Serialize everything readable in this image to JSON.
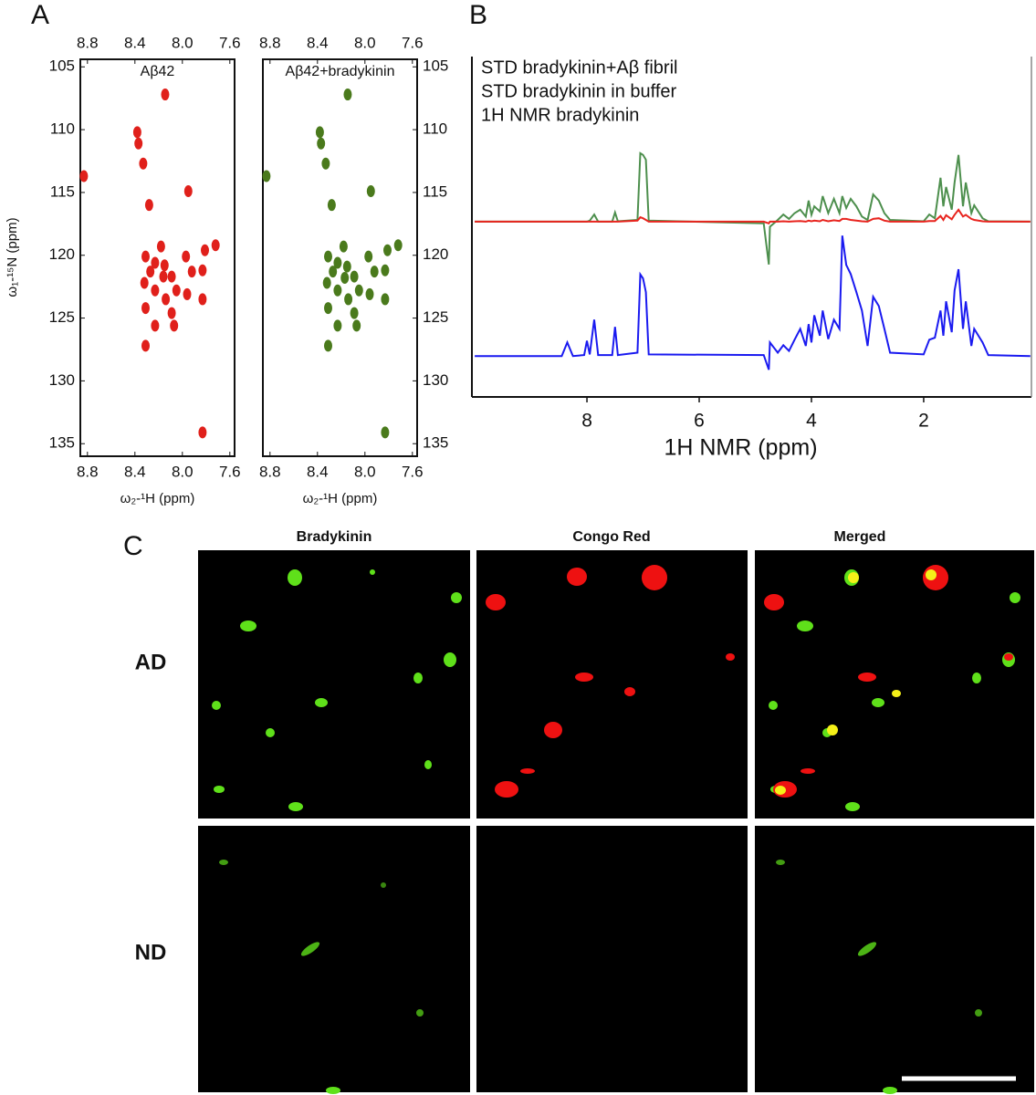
{
  "panel_labels": [
    "A",
    "B",
    "C"
  ],
  "chart_data": [
    {
      "type": "scatter",
      "title": "Aβ42",
      "xlabel": "ω₂-¹H (ppm)",
      "ylabel": "ω₁-¹⁵N (ppm)",
      "color": "#e0201b",
      "xlim": [
        8.86,
        7.56
      ],
      "ylim": [
        104.4,
        136
      ],
      "xticks": [
        8.8,
        8.4,
        {
          "value": 8,
          "label": "8.0"
        },
        7.6
      ],
      "yticks": [
        105,
        110,
        115,
        120,
        125,
        130,
        135
      ],
      "x": [
        8.145,
        8.38,
        8.37,
        8.33,
        8.83,
        7.95,
        8.28,
        7.72,
        7.81,
        7.97,
        8.18,
        8.31,
        8.23,
        8.15,
        8.27,
        8.16,
        8.09,
        7.92,
        7.83,
        8.32,
        8.23,
        8.05,
        7.96,
        8.14,
        7.83,
        8.09,
        8.31,
        8.23,
        8.07,
        8.31,
        7.83
      ],
      "values": [
        107.2,
        110.2,
        111.1,
        112.7,
        113.7,
        114.9,
        116.0,
        119.2,
        119.6,
        120.1,
        119.3,
        120.1,
        120.6,
        120.8,
        121.3,
        121.7,
        121.7,
        121.3,
        121.2,
        122.2,
        122.8,
        122.8,
        123.1,
        123.5,
        123.5,
        124.6,
        124.2,
        125.6,
        125.6,
        127.2,
        134.1
      ]
    },
    {
      "type": "scatter",
      "title": "Aβ42+bradykinin",
      "xlabel": "ω₂-¹H (ppm)",
      "color": "#4a7a1c",
      "xlim": [
        8.86,
        7.56
      ],
      "ylim": [
        104.4,
        136
      ],
      "xticks": [
        8.8,
        8.4,
        {
          "value": 8,
          "label": "8.0"
        },
        7.6
      ],
      "yticks": [
        105,
        110,
        115,
        120,
        125,
        130,
        135
      ],
      "x": [
        8.145,
        8.38,
        8.37,
        8.33,
        8.83,
        7.95,
        8.28,
        7.72,
        7.81,
        7.97,
        8.18,
        8.31,
        8.23,
        8.15,
        8.27,
        8.17,
        8.09,
        7.92,
        7.83,
        8.32,
        8.23,
        8.05,
        7.96,
        8.14,
        7.83,
        8.09,
        8.31,
        8.23,
        8.07,
        8.31,
        7.83
      ],
      "values": [
        107.2,
        110.2,
        111.1,
        112.7,
        113.7,
        114.9,
        116.0,
        119.2,
        119.6,
        120.1,
        119.3,
        120.1,
        120.6,
        120.9,
        121.3,
        121.8,
        121.7,
        121.3,
        121.2,
        122.2,
        122.8,
        122.8,
        123.1,
        123.5,
        123.5,
        124.6,
        124.2,
        125.6,
        125.6,
        127.2,
        134.1
      ]
    },
    {
      "type": "line",
      "xlabel": "1H NMR (ppm)",
      "xlim": [
        10.05,
        0.08
      ],
      "ylim": [
        0,
        100
      ],
      "xticks": [
        8,
        6,
        4,
        2
      ],
      "x": [
        10.0,
        8.45,
        8.35,
        8.25,
        8.05,
        8.0,
        7.95,
        7.87,
        7.8,
        7.55,
        7.5,
        7.45,
        7.1,
        7.05,
        7.0,
        6.95,
        6.9,
        4.85,
        4.76,
        4.74,
        4.6,
        4.5,
        4.4,
        4.3,
        4.2,
        4.1,
        4.05,
        4.0,
        3.95,
        3.85,
        3.8,
        3.7,
        3.6,
        3.5,
        3.45,
        3.38,
        3.3,
        3.2,
        3.1,
        3.0,
        2.9,
        2.8,
        2.7,
        2.6,
        2.0,
        1.9,
        1.8,
        1.7,
        1.65,
        1.6,
        1.5,
        1.45,
        1.38,
        1.3,
        1.25,
        1.15,
        1.1,
        0.95,
        0.85,
        0.1
      ],
      "series": [
        {
          "name": "STD bradykinin+Aβ fibril",
          "color": "#4d8f4d",
          "values": [
            51.5,
            51.5,
            51.5,
            51.5,
            51.5,
            51.5,
            51.8,
            53.6,
            51.5,
            51.5,
            54.2,
            51.6,
            52,
            71.6,
            71.1,
            69.7,
            51.8,
            51,
            38.9,
            50,
            52,
            53.6,
            52.3,
            54,
            55,
            53,
            57.7,
            53.5,
            56,
            54.5,
            59,
            54,
            58.2,
            54,
            59,
            55.5,
            58.2,
            56,
            53,
            52,
            59.5,
            57.7,
            54,
            52,
            51.6,
            53.6,
            52.5,
            64.4,
            56,
            61.7,
            55,
            63,
            71.1,
            56,
            63,
            54,
            56.3,
            52.5,
            51.6,
            51.5
          ]
        },
        {
          "name": "STD bradykinin in buffer",
          "color": "#e8241e",
          "values": [
            51.5,
            51.5,
            51.5,
            51.5,
            51.5,
            51.5,
            51.5,
            51.5,
            51.5,
            51.5,
            51.5,
            51.5,
            51.8,
            52.8,
            52.5,
            52,
            51.5,
            51.5,
            51,
            51.5,
            51.5,
            51.6,
            51.5,
            51.6,
            51.7,
            51.5,
            51.8,
            51.6,
            51.8,
            51.6,
            52,
            51.6,
            51.9,
            51.7,
            52.3,
            52.3,
            52,
            51.8,
            51.6,
            51.5,
            52.3,
            52.5,
            51.8,
            51.5,
            51.5,
            51.7,
            51.7,
            53.2,
            52,
            53.4,
            52.2,
            53.5,
            55,
            53,
            53.5,
            52.3,
            52,
            51.6,
            51.5,
            51.5
          ]
        },
        {
          "name": "1H NMR bradykinin",
          "color": "#1a1af0",
          "values": [
            12,
            12,
            16,
            12,
            12.3,
            16.5,
            12.5,
            22.7,
            12.3,
            12.3,
            20.6,
            12.3,
            13,
            36,
            34.8,
            30.8,
            12.5,
            12.3,
            8,
            16,
            13,
            15.2,
            13.5,
            16.8,
            20,
            15,
            21.4,
            16,
            24,
            18,
            25.4,
            17,
            22.7,
            20,
            47.4,
            38.8,
            36.1,
            30.8,
            25.4,
            15,
            29.4,
            26.7,
            20,
            13,
            12.5,
            16.8,
            17.4,
            25.4,
            18,
            28.1,
            19,
            31.3,
            37.5,
            20,
            28.1,
            15,
            20,
            16,
            12.3,
            12
          ]
        }
      ]
    }
  ],
  "microscopy": {
    "columns": [
      "Bradykinin",
      "Congo Red",
      "Merged"
    ],
    "rows": [
      "AD",
      "ND"
    ]
  }
}
